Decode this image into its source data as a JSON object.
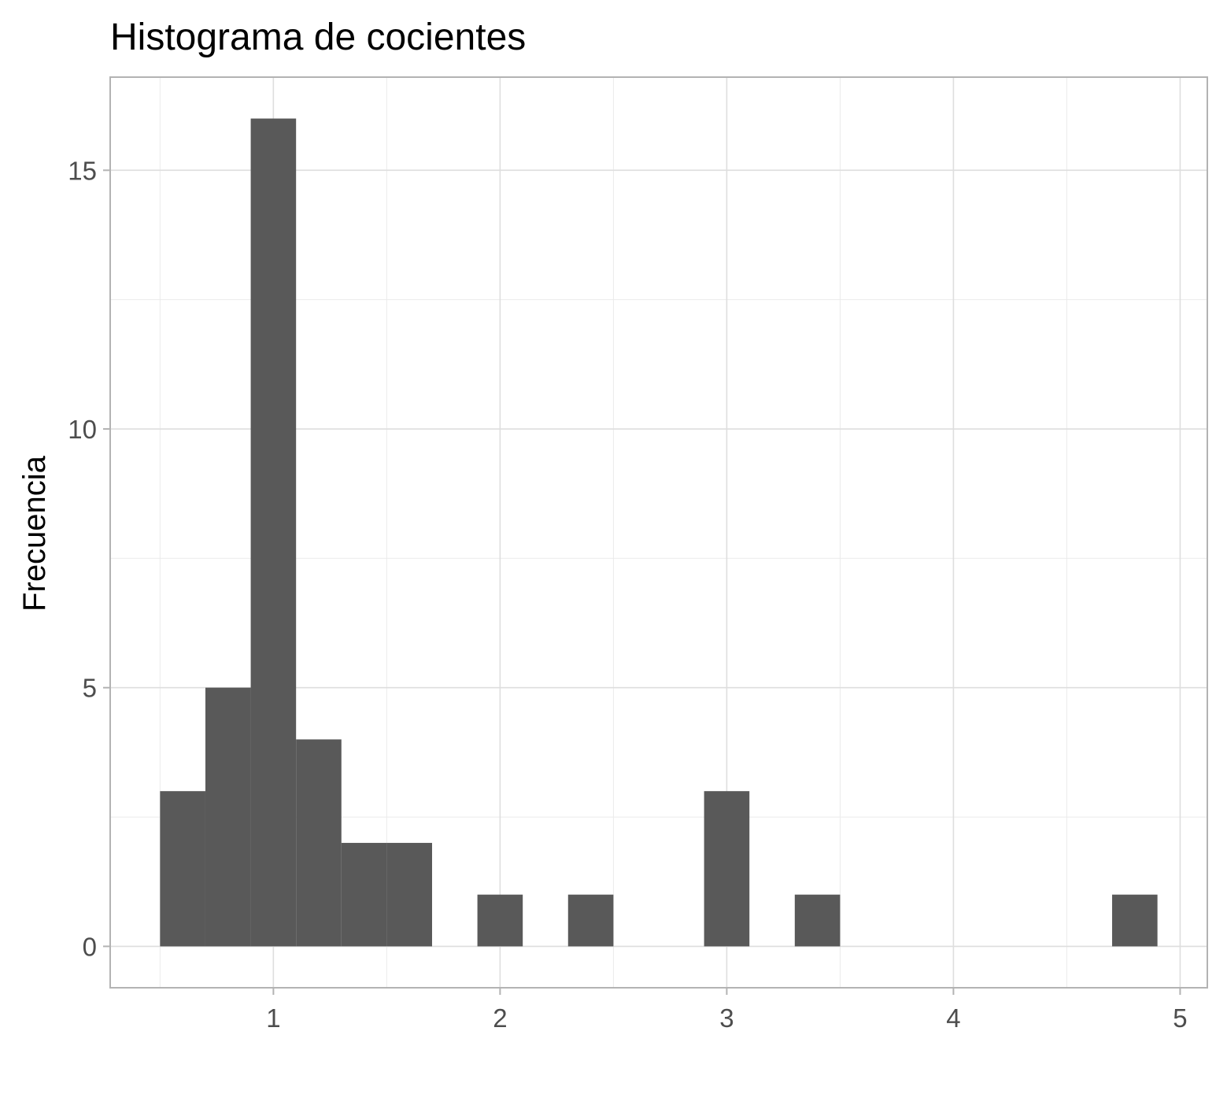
{
  "chart_data": {
    "type": "bar",
    "subtype": "histogram",
    "title": "Histograma de cocientes",
    "xlabel": "",
    "ylabel": "Frecuencia",
    "bin_width": 0.2,
    "bins": [
      {
        "x0": 0.5,
        "x1": 0.7,
        "count": 3
      },
      {
        "x0": 0.7,
        "x1": 0.9,
        "count": 5
      },
      {
        "x0": 0.9,
        "x1": 1.1,
        "count": 16
      },
      {
        "x0": 1.1,
        "x1": 1.3,
        "count": 4
      },
      {
        "x0": 1.3,
        "x1": 1.5,
        "count": 2
      },
      {
        "x0": 1.5,
        "x1": 1.7,
        "count": 2
      },
      {
        "x0": 1.7,
        "x1": 1.9,
        "count": 0
      },
      {
        "x0": 1.9,
        "x1": 2.1,
        "count": 1
      },
      {
        "x0": 2.1,
        "x1": 2.3,
        "count": 0
      },
      {
        "x0": 2.3,
        "x1": 2.5,
        "count": 1
      },
      {
        "x0": 2.5,
        "x1": 2.7,
        "count": 0
      },
      {
        "x0": 2.7,
        "x1": 2.9,
        "count": 0
      },
      {
        "x0": 2.9,
        "x1": 3.1,
        "count": 3
      },
      {
        "x0": 3.1,
        "x1": 3.3,
        "count": 0
      },
      {
        "x0": 3.3,
        "x1": 3.5,
        "count": 1
      },
      {
        "x0": 3.5,
        "x1": 3.7,
        "count": 0
      },
      {
        "x0": 3.7,
        "x1": 3.9,
        "count": 0
      },
      {
        "x0": 3.9,
        "x1": 4.1,
        "count": 0
      },
      {
        "x0": 4.1,
        "x1": 4.3,
        "count": 0
      },
      {
        "x0": 4.3,
        "x1": 4.5,
        "count": 0
      },
      {
        "x0": 4.5,
        "x1": 4.7,
        "count": 0
      },
      {
        "x0": 4.7,
        "x1": 4.9,
        "count": 1
      }
    ],
    "xlim": [
      0.28,
      5.12
    ],
    "ylim": [
      -0.8,
      16.8
    ],
    "x_ticks": [
      1,
      2,
      3,
      4,
      5
    ],
    "x_tick_labels": [
      "1",
      "2",
      "3",
      "4",
      "5"
    ],
    "x_minor_ticks": [
      0.5,
      1.5,
      2.5,
      3.5,
      4.5
    ],
    "y_ticks": [
      0,
      5,
      10,
      15
    ],
    "y_tick_labels": [
      "0",
      "5",
      "10",
      "15"
    ],
    "y_minor_ticks": [
      2.5,
      7.5,
      12.5
    ],
    "grid": true,
    "bar_color": "#595959",
    "panel_border_color": "#b3b3b3",
    "grid_color": "#dedede",
    "legend": "none"
  }
}
